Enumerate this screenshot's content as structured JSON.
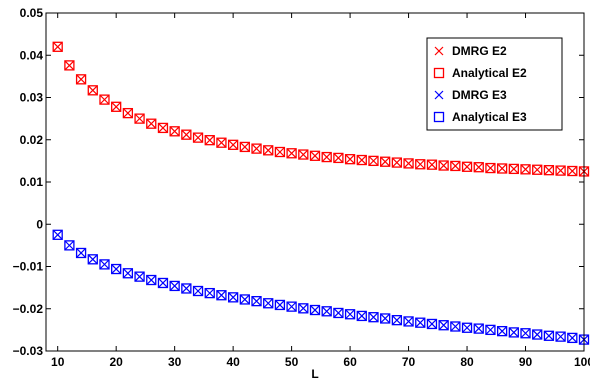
{
  "chart_data": {
    "type": "scatter",
    "xlabel": "L",
    "ylabel": "",
    "xlim": [
      8,
      100
    ],
    "ylim": [
      -0.03,
      0.05
    ],
    "xticks": [
      10,
      20,
      30,
      40,
      50,
      60,
      70,
      80,
      90,
      100
    ],
    "yticks": [
      -0.03,
      -0.02,
      -0.01,
      0,
      0.01,
      0.02,
      0.03,
      0.04,
      0.05
    ],
    "xtick_labels": [
      "10",
      "20",
      "30",
      "40",
      "50",
      "60",
      "70",
      "80",
      "90",
      "100"
    ],
    "ytick_labels": [
      "−0.03",
      "−0.02",
      "−0.01",
      "0",
      "0.01",
      "0.02",
      "0.03",
      "0.04",
      "0.05"
    ],
    "grid": false,
    "legend_position": "top-right",
    "x": [
      10,
      12,
      14,
      16,
      18,
      20,
      22,
      24,
      26,
      28,
      30,
      32,
      34,
      36,
      38,
      40,
      42,
      44,
      46,
      48,
      50,
      52,
      54,
      56,
      58,
      60,
      62,
      64,
      66,
      68,
      70,
      72,
      74,
      76,
      78,
      80,
      82,
      84,
      86,
      88,
      90,
      92,
      94,
      96,
      98,
      100
    ],
    "series": [
      {
        "name": "DMRG E2",
        "marker": "x",
        "color": "#ff0000",
        "values": [
          0.042,
          0.0376,
          0.0343,
          0.0317,
          0.0295,
          0.0278,
          0.0263,
          0.025,
          0.0238,
          0.0228,
          0.022,
          0.0212,
          0.0205,
          0.0199,
          0.0193,
          0.0188,
          0.0183,
          0.0179,
          0.0175,
          0.0171,
          0.0168,
          0.0165,
          0.0162,
          0.0159,
          0.0157,
          0.0154,
          0.0152,
          0.015,
          0.0148,
          0.0146,
          0.0144,
          0.0142,
          0.0141,
          0.0139,
          0.0138,
          0.0136,
          0.0135,
          0.0133,
          0.0132,
          0.0131,
          0.013,
          0.0129,
          0.0128,
          0.0127,
          0.0126,
          0.0125
        ]
      },
      {
        "name": "Analytical E2",
        "marker": "square",
        "color": "#ff0000",
        "values": [
          0.042,
          0.0376,
          0.0343,
          0.0317,
          0.0295,
          0.0278,
          0.0263,
          0.025,
          0.0238,
          0.0228,
          0.022,
          0.0212,
          0.0205,
          0.0199,
          0.0193,
          0.0188,
          0.0183,
          0.0179,
          0.0175,
          0.0171,
          0.0168,
          0.0165,
          0.0162,
          0.0159,
          0.0157,
          0.0154,
          0.0152,
          0.015,
          0.0148,
          0.0146,
          0.0144,
          0.0142,
          0.0141,
          0.0139,
          0.0138,
          0.0136,
          0.0135,
          0.0133,
          0.0132,
          0.0131,
          0.013,
          0.0129,
          0.0128,
          0.0127,
          0.0126,
          0.0125
        ]
      },
      {
        "name": "DMRG E3",
        "marker": "x",
        "color": "#0000ff",
        "values": [
          -0.0025,
          -0.005,
          -0.0068,
          -0.0083,
          -0.0095,
          -0.0106,
          -0.0116,
          -0.0124,
          -0.0132,
          -0.0139,
          -0.0146,
          -0.0152,
          -0.0158,
          -0.0163,
          -0.0168,
          -0.0173,
          -0.0178,
          -0.0182,
          -0.0187,
          -0.0191,
          -0.0195,
          -0.0199,
          -0.0203,
          -0.0206,
          -0.021,
          -0.0213,
          -0.0217,
          -0.022,
          -0.0223,
          -0.0227,
          -0.023,
          -0.0233,
          -0.0236,
          -0.0239,
          -0.0242,
          -0.0245,
          -0.0247,
          -0.025,
          -0.0253,
          -0.0256,
          -0.0258,
          -0.0261,
          -0.0264,
          -0.0266,
          -0.0269,
          -0.0273
        ]
      },
      {
        "name": "Analytical E3",
        "marker": "square",
        "color": "#0000ff",
        "values": [
          -0.0025,
          -0.005,
          -0.0068,
          -0.0083,
          -0.0095,
          -0.0106,
          -0.0116,
          -0.0124,
          -0.0132,
          -0.0139,
          -0.0146,
          -0.0152,
          -0.0158,
          -0.0163,
          -0.0168,
          -0.0173,
          -0.0178,
          -0.0182,
          -0.0187,
          -0.0191,
          -0.0195,
          -0.0199,
          -0.0203,
          -0.0206,
          -0.021,
          -0.0213,
          -0.0217,
          -0.022,
          -0.0223,
          -0.0227,
          -0.023,
          -0.0233,
          -0.0236,
          -0.0239,
          -0.0242,
          -0.0245,
          -0.0247,
          -0.025,
          -0.0253,
          -0.0256,
          -0.0258,
          -0.0261,
          -0.0264,
          -0.0266,
          -0.0269,
          -0.0273
        ]
      }
    ]
  }
}
